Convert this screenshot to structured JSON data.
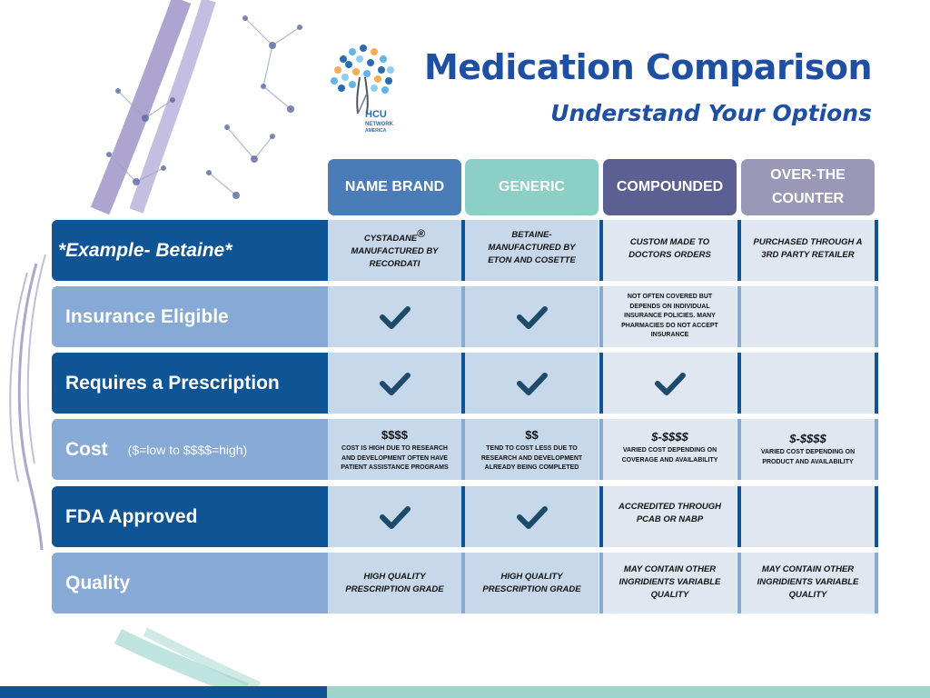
{
  "header": {
    "title": "Medication Comparison",
    "subtitle": "Understand Your Options",
    "logo_text": "HCU NETWORK AMERICA"
  },
  "columns": [
    {
      "label": "NAME BRAND",
      "color": "#4a7cb8"
    },
    {
      "label": "GENERIC",
      "color": "#8ccfc6"
    },
    {
      "label": "COMPOUNDED",
      "color": "#5b5f91"
    },
    {
      "label": "OVER-THE COUNTER",
      "color": "#9a98b6"
    }
  ],
  "rows": {
    "example": {
      "label": "*Example- Betaine*",
      "name_brand_line1": "CYSTADANE",
      "name_brand_mark": "®",
      "name_brand_line2": "MANUFACTURED BY RECORDATI",
      "generic": "BETAINE- MANUFACTURED BY ETON AND COSETTE",
      "compounded": "CUSTOM MADE TO DOCTORS ORDERS",
      "otc": "PURCHASED THROUGH A 3RD PARTY RETAILER"
    },
    "insurance": {
      "label": "Insurance Eligible",
      "compounded": "NOT OFTEN COVERED BUT DEPENDS ON INDIVIDUAL INSURANCE POLICIES. MANY PHARMACIES DO NOT ACCEPT INSURANCE"
    },
    "prescription": {
      "label": "Requires a Prescription"
    },
    "cost": {
      "label": "Cost",
      "note": "($=low to $$$$=high)",
      "name_brand_price": "$$$$",
      "name_brand_text": "COST IS HIGH DUE TO RESEARCH AND DEVELOPMENT OFTEN HAVE PATIENT ASSISTANCE PROGRAMS",
      "generic_price": "$$",
      "generic_text": "TEND TO COST LESS DUE TO RESEARCH AND DEVELOPMENT ALREADY BEING COMPLETED",
      "compounded_price": "$-$$$$",
      "compounded_text": "VARIED COST DEPENDING ON COVERAGE AND AVAILABILITY",
      "otc_price": "$-$$$$",
      "otc_text": "VARIED COST DEPENDING ON PRODUCT AND AVAILABILITY"
    },
    "fda": {
      "label": "FDA Approved",
      "compounded": "ACCREDITED THROUGH PCAB OR NABP"
    },
    "quality": {
      "label": "Quality",
      "name_brand": "HIGH QUALITY PRESCRIPTION GRADE",
      "generic": "HIGH QUALITY PRESCRIPTION GRADE",
      "compounded": "MAY CONTAIN OTHER INGRIDIENTS VARIABLE QUALITY",
      "otc": "MAY CONTAIN OTHER INGRIDIENTS VARIABLE QUALITY"
    }
  },
  "colors": {
    "title": "#1f4fa3",
    "row_dark": "#0f5596",
    "row_light": "#86a9d5",
    "cell_blue": "#c7d8ea",
    "cell_pale": "#dfe7f1",
    "check": "#1d4a6b"
  }
}
